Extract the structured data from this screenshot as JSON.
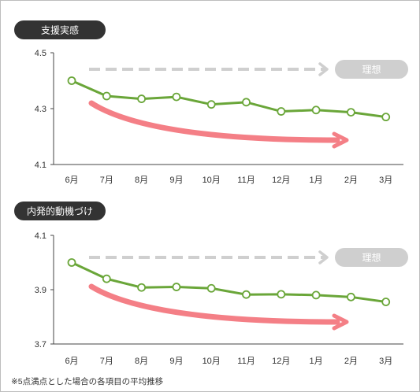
{
  "chart_data": [
    {
      "type": "line",
      "title": "支援実感",
      "categories": [
        "6月",
        "7月",
        "8月",
        "9月",
        "10月",
        "11月",
        "12月",
        "1月",
        "2月",
        "3月"
      ],
      "values": [
        4.4,
        4.345,
        4.335,
        4.342,
        4.315,
        4.323,
        4.29,
        4.295,
        4.287,
        4.27
      ],
      "ylim": [
        4.1,
        4.5
      ],
      "yticks": [
        "4.5",
        "4.3",
        "4.1"
      ],
      "ideal_label": "理想",
      "colors": {
        "line": "#6aa639",
        "trend_arrow": "#f47f86",
        "ideal_arrow": "#cfcfcf",
        "pill": "#333333"
      }
    },
    {
      "type": "line",
      "title": "内発的動機づけ",
      "categories": [
        "6月",
        "7月",
        "8月",
        "9月",
        "10月",
        "11月",
        "12月",
        "1月",
        "2月",
        "3月"
      ],
      "values": [
        4.0,
        3.94,
        3.908,
        3.91,
        3.905,
        3.882,
        3.883,
        3.88,
        3.873,
        3.855
      ],
      "ylim": [
        3.7,
        4.1
      ],
      "yticks": [
        "4.1",
        "3.9",
        "3.7"
      ],
      "ideal_label": "理想",
      "colors": {
        "line": "#6aa639",
        "trend_arrow": "#f47f86",
        "ideal_arrow": "#cfcfcf",
        "pill": "#333333"
      }
    }
  ],
  "footnote": "※5点満点とした場合の各項目の平均推移"
}
